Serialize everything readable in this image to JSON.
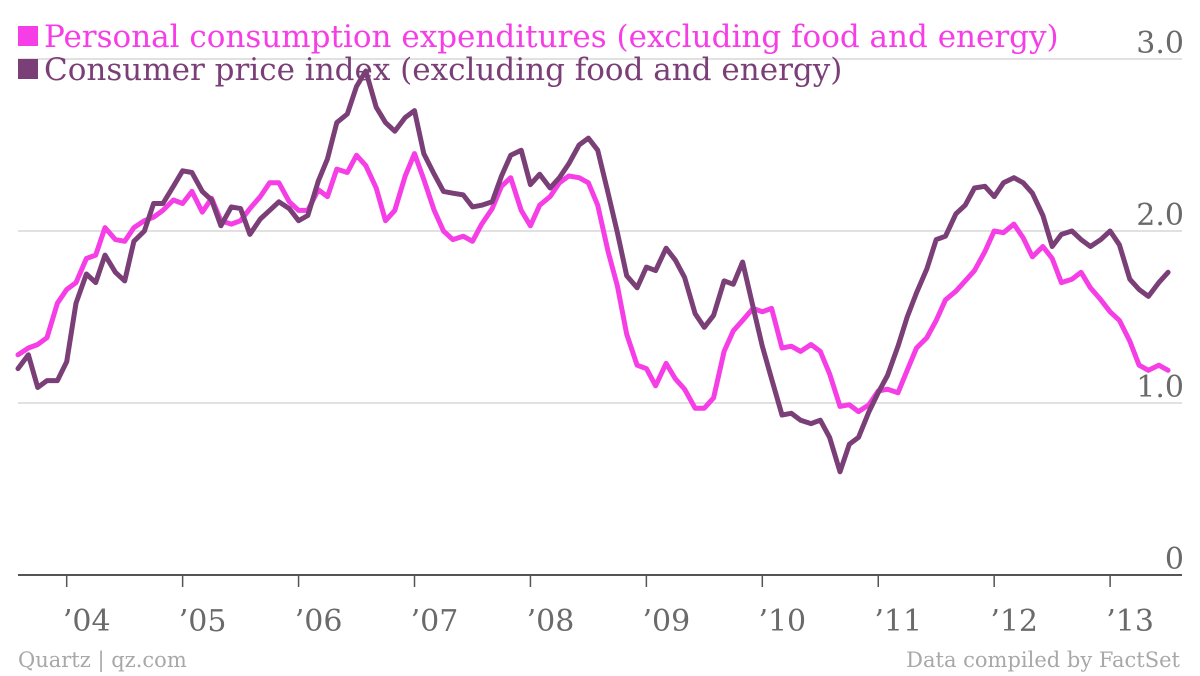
{
  "chart_data": {
    "type": "line",
    "title": "",
    "xlabel": "",
    "ylabel": "",
    "xlim": [
      2003.58,
      2013.62
    ],
    "ylim": [
      0,
      3.0
    ],
    "yticks": [
      {
        "value": 0,
        "label": "0"
      },
      {
        "value": 1.0,
        "label": "1.0"
      },
      {
        "value": 2.0,
        "label": "2.0"
      },
      {
        "value": 3.0,
        "label": "3.0"
      }
    ],
    "xticks": [
      {
        "value": 2004,
        "label": "’04"
      },
      {
        "value": 2005,
        "label": "’05"
      },
      {
        "value": 2006,
        "label": "’06"
      },
      {
        "value": 2007,
        "label": "’07"
      },
      {
        "value": 2008,
        "label": "’08"
      },
      {
        "value": 2009,
        "label": "’09"
      },
      {
        "value": 2010,
        "label": "’10"
      },
      {
        "value": 2011,
        "label": "’11"
      },
      {
        "value": 2012,
        "label": "’12"
      },
      {
        "value": 2013,
        "label": "’13"
      }
    ],
    "grid": "horizontal",
    "legend": "top-left",
    "series": [
      {
        "name": "Personal consumption expenditures (excluding food and energy)",
        "color": "#f53ee6",
        "points": [
          [
            2003.58,
            1.28
          ],
          [
            2003.67,
            1.32
          ],
          [
            2003.75,
            1.34
          ],
          [
            2003.83,
            1.38
          ],
          [
            2003.92,
            1.58
          ],
          [
            2004.0,
            1.66
          ],
          [
            2004.08,
            1.7
          ],
          [
            2004.17,
            1.84
          ],
          [
            2004.25,
            1.86
          ],
          [
            2004.33,
            2.02
          ],
          [
            2004.42,
            1.95
          ],
          [
            2004.5,
            1.94
          ],
          [
            2004.58,
            2.02
          ],
          [
            2004.67,
            2.06
          ],
          [
            2004.75,
            2.08
          ],
          [
            2004.83,
            2.12
          ],
          [
            2004.92,
            2.18
          ],
          [
            2005.0,
            2.16
          ],
          [
            2005.08,
            2.23
          ],
          [
            2005.17,
            2.11
          ],
          [
            2005.25,
            2.19
          ],
          [
            2005.33,
            2.06
          ],
          [
            2005.42,
            2.04
          ],
          [
            2005.5,
            2.06
          ],
          [
            2005.58,
            2.13
          ],
          [
            2005.67,
            2.2
          ],
          [
            2005.75,
            2.28
          ],
          [
            2005.83,
            2.28
          ],
          [
            2005.92,
            2.17
          ],
          [
            2006.0,
            2.12
          ],
          [
            2006.08,
            2.12
          ],
          [
            2006.17,
            2.24
          ],
          [
            2006.25,
            2.2
          ],
          [
            2006.33,
            2.36
          ],
          [
            2006.42,
            2.34
          ],
          [
            2006.5,
            2.44
          ],
          [
            2006.58,
            2.38
          ],
          [
            2006.67,
            2.25
          ],
          [
            2006.75,
            2.06
          ],
          [
            2006.83,
            2.12
          ],
          [
            2006.92,
            2.32
          ],
          [
            2007.0,
            2.45
          ],
          [
            2007.08,
            2.3
          ],
          [
            2007.17,
            2.12
          ],
          [
            2007.25,
            2.0
          ],
          [
            2007.33,
            1.95
          ],
          [
            2007.42,
            1.97
          ],
          [
            2007.5,
            1.94
          ],
          [
            2007.58,
            2.04
          ],
          [
            2007.67,
            2.13
          ],
          [
            2007.75,
            2.26
          ],
          [
            2007.83,
            2.31
          ],
          [
            2007.92,
            2.12
          ],
          [
            2008.0,
            2.03
          ],
          [
            2008.08,
            2.15
          ],
          [
            2008.17,
            2.2
          ],
          [
            2008.25,
            2.28
          ],
          [
            2008.33,
            2.32
          ],
          [
            2008.42,
            2.31
          ],
          [
            2008.5,
            2.28
          ],
          [
            2008.58,
            2.15
          ],
          [
            2008.67,
            1.88
          ],
          [
            2008.75,
            1.68
          ],
          [
            2008.83,
            1.4
          ],
          [
            2008.92,
            1.22
          ],
          [
            2009.0,
            1.2
          ],
          [
            2009.08,
            1.1
          ],
          [
            2009.17,
            1.23
          ],
          [
            2009.25,
            1.14
          ],
          [
            2009.33,
            1.08
          ],
          [
            2009.42,
            0.97
          ],
          [
            2009.5,
            0.97
          ],
          [
            2009.58,
            1.03
          ],
          [
            2009.67,
            1.3
          ],
          [
            2009.75,
            1.42
          ],
          [
            2009.83,
            1.48
          ],
          [
            2009.92,
            1.55
          ],
          [
            2010.0,
            1.53
          ],
          [
            2010.08,
            1.55
          ],
          [
            2010.17,
            1.32
          ],
          [
            2010.25,
            1.33
          ],
          [
            2010.33,
            1.3
          ],
          [
            2010.42,
            1.34
          ],
          [
            2010.5,
            1.3
          ],
          [
            2010.58,
            1.17
          ],
          [
            2010.67,
            0.98
          ],
          [
            2010.75,
            0.99
          ],
          [
            2010.83,
            0.95
          ],
          [
            2010.92,
            0.99
          ],
          [
            2011.0,
            1.07
          ],
          [
            2011.08,
            1.08
          ],
          [
            2011.17,
            1.06
          ],
          [
            2011.25,
            1.19
          ],
          [
            2011.33,
            1.32
          ],
          [
            2011.42,
            1.38
          ],
          [
            2011.5,
            1.48
          ],
          [
            2011.58,
            1.6
          ],
          [
            2011.67,
            1.65
          ],
          [
            2011.75,
            1.71
          ],
          [
            2011.83,
            1.77
          ],
          [
            2011.92,
            1.88
          ],
          [
            2012.0,
            2.0
          ],
          [
            2012.08,
            1.99
          ],
          [
            2012.17,
            2.04
          ],
          [
            2012.25,
            1.96
          ],
          [
            2012.33,
            1.85
          ],
          [
            2012.42,
            1.91
          ],
          [
            2012.5,
            1.84
          ],
          [
            2012.58,
            1.7
          ],
          [
            2012.67,
            1.72
          ],
          [
            2012.75,
            1.76
          ],
          [
            2012.83,
            1.67
          ],
          [
            2012.92,
            1.6
          ],
          [
            2013.0,
            1.53
          ],
          [
            2013.08,
            1.48
          ],
          [
            2013.17,
            1.36
          ],
          [
            2013.25,
            1.22
          ],
          [
            2013.33,
            1.19
          ],
          [
            2013.42,
            1.22
          ],
          [
            2013.5,
            1.19
          ]
        ]
      },
      {
        "name": "Consumer price index (excluding food and energy)",
        "color": "#7b3f77",
        "points": [
          [
            2003.58,
            1.2
          ],
          [
            2003.67,
            1.28
          ],
          [
            2003.75,
            1.09
          ],
          [
            2003.83,
            1.13
          ],
          [
            2003.92,
            1.13
          ],
          [
            2004.0,
            1.24
          ],
          [
            2004.08,
            1.58
          ],
          [
            2004.17,
            1.75
          ],
          [
            2004.25,
            1.7
          ],
          [
            2004.33,
            1.86
          ],
          [
            2004.42,
            1.76
          ],
          [
            2004.5,
            1.71
          ],
          [
            2004.58,
            1.94
          ],
          [
            2004.67,
            2.0
          ],
          [
            2004.75,
            2.16
          ],
          [
            2004.83,
            2.16
          ],
          [
            2004.92,
            2.26
          ],
          [
            2005.0,
            2.35
          ],
          [
            2005.08,
            2.34
          ],
          [
            2005.17,
            2.23
          ],
          [
            2005.25,
            2.18
          ],
          [
            2005.33,
            2.03
          ],
          [
            2005.42,
            2.14
          ],
          [
            2005.5,
            2.13
          ],
          [
            2005.58,
            1.98
          ],
          [
            2005.67,
            2.07
          ],
          [
            2005.75,
            2.12
          ],
          [
            2005.83,
            2.17
          ],
          [
            2005.92,
            2.13
          ],
          [
            2006.0,
            2.06
          ],
          [
            2006.08,
            2.09
          ],
          [
            2006.17,
            2.29
          ],
          [
            2006.25,
            2.42
          ],
          [
            2006.33,
            2.63
          ],
          [
            2006.42,
            2.68
          ],
          [
            2006.5,
            2.84
          ],
          [
            2006.58,
            2.93
          ],
          [
            2006.67,
            2.72
          ],
          [
            2006.75,
            2.63
          ],
          [
            2006.83,
            2.58
          ],
          [
            2006.92,
            2.66
          ],
          [
            2007.0,
            2.7
          ],
          [
            2007.08,
            2.45
          ],
          [
            2007.17,
            2.33
          ],
          [
            2007.25,
            2.23
          ],
          [
            2007.33,
            2.22
          ],
          [
            2007.42,
            2.21
          ],
          [
            2007.5,
            2.14
          ],
          [
            2007.58,
            2.15
          ],
          [
            2007.67,
            2.17
          ],
          [
            2007.75,
            2.32
          ],
          [
            2007.83,
            2.44
          ],
          [
            2007.92,
            2.47
          ],
          [
            2008.0,
            2.27
          ],
          [
            2008.08,
            2.33
          ],
          [
            2008.17,
            2.25
          ],
          [
            2008.25,
            2.31
          ],
          [
            2008.33,
            2.39
          ],
          [
            2008.42,
            2.5
          ],
          [
            2008.5,
            2.54
          ],
          [
            2008.58,
            2.47
          ],
          [
            2008.67,
            2.22
          ],
          [
            2008.75,
            1.99
          ],
          [
            2008.83,
            1.74
          ],
          [
            2008.92,
            1.67
          ],
          [
            2009.0,
            1.79
          ],
          [
            2009.08,
            1.77
          ],
          [
            2009.17,
            1.9
          ],
          [
            2009.25,
            1.83
          ],
          [
            2009.33,
            1.73
          ],
          [
            2009.42,
            1.52
          ],
          [
            2009.5,
            1.44
          ],
          [
            2009.58,
            1.51
          ],
          [
            2009.67,
            1.71
          ],
          [
            2009.75,
            1.69
          ],
          [
            2009.83,
            1.82
          ],
          [
            2009.92,
            1.56
          ],
          [
            2010.0,
            1.33
          ],
          [
            2010.08,
            1.14
          ],
          [
            2010.17,
            0.93
          ],
          [
            2010.25,
            0.94
          ],
          [
            2010.33,
            0.9
          ],
          [
            2010.42,
            0.88
          ],
          [
            2010.5,
            0.9
          ],
          [
            2010.58,
            0.8
          ],
          [
            2010.67,
            0.6
          ],
          [
            2010.75,
            0.76
          ],
          [
            2010.83,
            0.8
          ],
          [
            2010.92,
            0.95
          ],
          [
            2011.0,
            1.06
          ],
          [
            2011.08,
            1.16
          ],
          [
            2011.17,
            1.33
          ],
          [
            2011.25,
            1.5
          ],
          [
            2011.33,
            1.64
          ],
          [
            2011.42,
            1.78
          ],
          [
            2011.5,
            1.95
          ],
          [
            2011.58,
            1.97
          ],
          [
            2011.67,
            2.1
          ],
          [
            2011.75,
            2.15
          ],
          [
            2011.83,
            2.25
          ],
          [
            2011.92,
            2.26
          ],
          [
            2012.0,
            2.2
          ],
          [
            2012.08,
            2.28
          ],
          [
            2012.17,
            2.31
          ],
          [
            2012.25,
            2.28
          ],
          [
            2012.33,
            2.22
          ],
          [
            2012.42,
            2.09
          ],
          [
            2012.5,
            1.91
          ],
          [
            2012.58,
            1.98
          ],
          [
            2012.67,
            2.0
          ],
          [
            2012.75,
            1.95
          ],
          [
            2012.83,
            1.91
          ],
          [
            2012.92,
            1.95
          ],
          [
            2013.0,
            2.0
          ],
          [
            2013.08,
            1.92
          ],
          [
            2013.17,
            1.72
          ],
          [
            2013.25,
            1.66
          ],
          [
            2013.33,
            1.62
          ],
          [
            2013.42,
            1.7
          ],
          [
            2013.5,
            1.76
          ]
        ]
      }
    ]
  },
  "footer": {
    "source_left": "Quartz | qz.com",
    "source_right": "Data compiled by FactSet"
  }
}
